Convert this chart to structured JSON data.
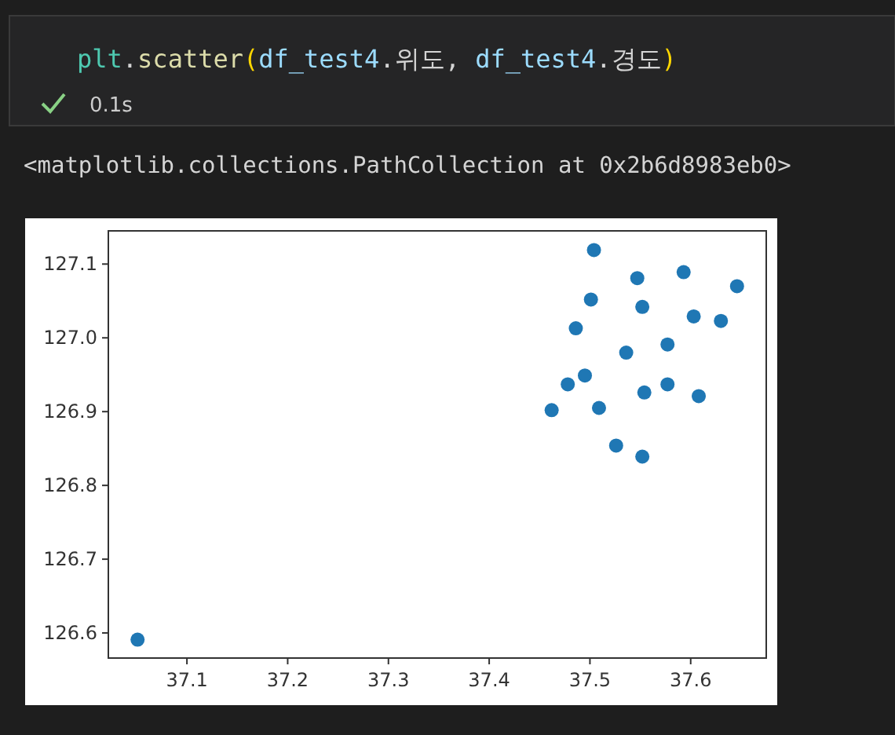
{
  "chart_data": {
    "type": "scatter",
    "annotations": [
      "plt.scatter(df_test4.위도, df_test4.경도)",
      "0.1s",
      "<matplotlib.collections.PathCollection at 0x2b6d8983eb0>"
    ],
    "x": [
      37.051,
      37.504,
      37.547,
      37.593,
      37.646,
      37.501,
      37.552,
      37.603,
      37.63,
      37.486,
      37.577,
      37.536,
      37.495,
      37.478,
      37.577,
      37.554,
      37.608,
      37.462,
      37.509,
      37.526,
      37.552
    ],
    "series": [
      {
        "color": "#1f77b4",
        "values": [
          126.591,
          127.119,
          127.081,
          127.089,
          127.07,
          127.052,
          127.042,
          127.029,
          127.023,
          127.013,
          126.991,
          126.98,
          126.949,
          126.937,
          126.937,
          126.926,
          126.921,
          126.902,
          126.905,
          126.854,
          126.839
        ]
      }
    ],
    "marker": "circle",
    "xlim": [
      37.022,
      37.675
    ],
    "ylim": [
      126.566,
      127.145
    ],
    "xticks": [
      37.1,
      37.2,
      37.3,
      37.4,
      37.5,
      37.6
    ],
    "yticks": [
      126.6,
      126.7,
      126.8,
      126.9,
      {
        "value": 127,
        "label": "127.0"
      },
      127.1
    ]
  }
}
